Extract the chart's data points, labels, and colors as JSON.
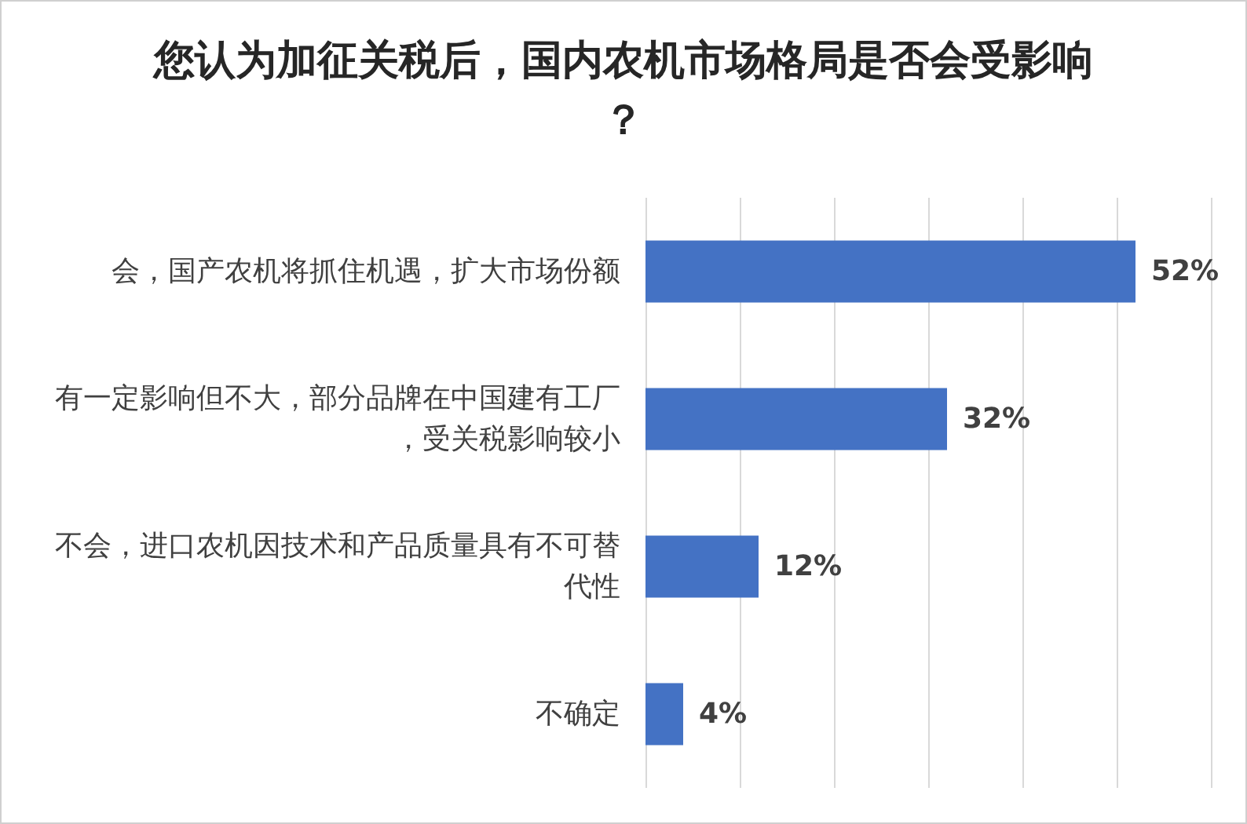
{
  "chart_data": {
    "type": "bar",
    "orientation": "horizontal",
    "title": "您认为加征关税后，国内农机市场格局是否会受影响？",
    "categories": [
      "会，国产农机将抓住机遇，扩大市场份额",
      "有一定影响但不大，部分品牌在中国建有工厂，受关税影响较小",
      "不会，进口农机因技术和产品质量具有不可替代性",
      "不确定"
    ],
    "values": [
      52,
      32,
      12,
      4
    ],
    "color": "#4472c4",
    "value_labels": [
      "52%",
      "32%",
      "12%",
      "4%"
    ],
    "xlim": [
      0,
      60
    ],
    "xticks": [
      0,
      10,
      20,
      30,
      40,
      50,
      60
    ],
    "grid": "x",
    "tick_labels": "y"
  }
}
